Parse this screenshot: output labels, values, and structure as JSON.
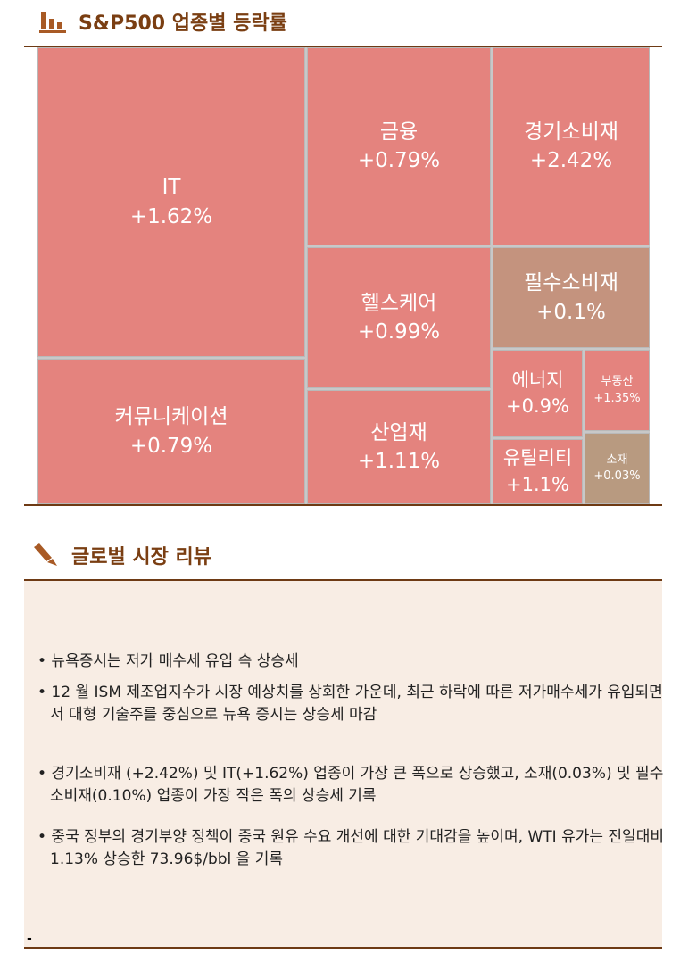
{
  "section1": {
    "title": "S&P500 업종별 등락률",
    "icon": "bar-chart-icon"
  },
  "treemap": [
    {
      "name": "IT",
      "value": "+1.62%"
    },
    {
      "name": "커뮤니케이션",
      "value": "+0.79%"
    },
    {
      "name": "금융",
      "value": "+0.79%"
    },
    {
      "name": "경기소비재",
      "value": "+2.42%"
    },
    {
      "name": "헬스케어",
      "value": "+0.99%"
    },
    {
      "name": "산업재",
      "value": "+1.11%"
    },
    {
      "name": "필수소비재",
      "value": "+0.1%"
    },
    {
      "name": "에너지",
      "value": "+0.9%"
    },
    {
      "name": "유틸리티",
      "value": "+1.1%"
    },
    {
      "name": "부동산",
      "value": "+1.35%"
    },
    {
      "name": "소재",
      "value": "+0.03%"
    }
  ],
  "colors": {
    "up": "#e4837e",
    "flat": "#c4937e",
    "accent": "#7a3e12",
    "panel": "#f8ede4"
  },
  "section2": {
    "title": "글로벌 시장 리뷰",
    "icon": "pen-icon"
  },
  "bullets": [
    "• 뉴욕증시는 저가 매수세 유입 속 상승세",
    "• 12 월 ISM 제조업지수가 시장 예상치를 상회한 가운데, 최근 하락에 따른 저가매수세가 유입되면서 대형 기술주를 중심으로 뉴욕 증시는 상승세 마감",
    "• 경기소비재 (+2.42%) 및 IT(+1.62%) 업종이 가장 큰 폭으로 상승했고, 소재(0.03%) 및 필수소비재(0.10%) 업종이 가장 작은 폭의 상승세 기록",
    "• 중국 정부의 경기부양 정책이 중국 원유 수요 개선에 대한 기대감을 높이며, WTI 유가는 전일대비 1.13% 상승한 73.96$/bbl 을 기록"
  ],
  "footer_mark": "-"
}
